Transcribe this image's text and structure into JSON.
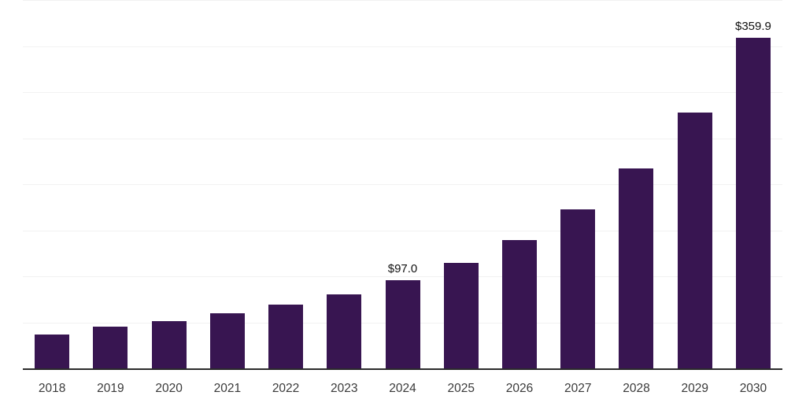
{
  "chart_data": {
    "type": "bar",
    "title": "",
    "xlabel": "",
    "ylabel": "",
    "categories": [
      "2018",
      "2019",
      "2020",
      "2021",
      "2022",
      "2023",
      "2024",
      "2025",
      "2026",
      "2027",
      "2028",
      "2029",
      "2030"
    ],
    "values": [
      37.5,
      46,
      52,
      60.5,
      70,
      81,
      97.0,
      115.5,
      140,
      173.5,
      218,
      278.5,
      359.9
    ],
    "data_labels": [
      {
        "index": 6,
        "text": "$97.0"
      },
      {
        "index": 12,
        "text": "$359.9"
      }
    ],
    "ylim": [
      0,
      400
    ],
    "grid_step": 50,
    "grid": true,
    "legend": false,
    "y_axis_labels_visible": false,
    "colors": {
      "bar": "#381551",
      "axis": "#2b2b2b",
      "gridline": "#f2f2f2",
      "tick_label": "#3a3a3a",
      "data_label": "#111111",
      "background": "#ffffff"
    }
  }
}
